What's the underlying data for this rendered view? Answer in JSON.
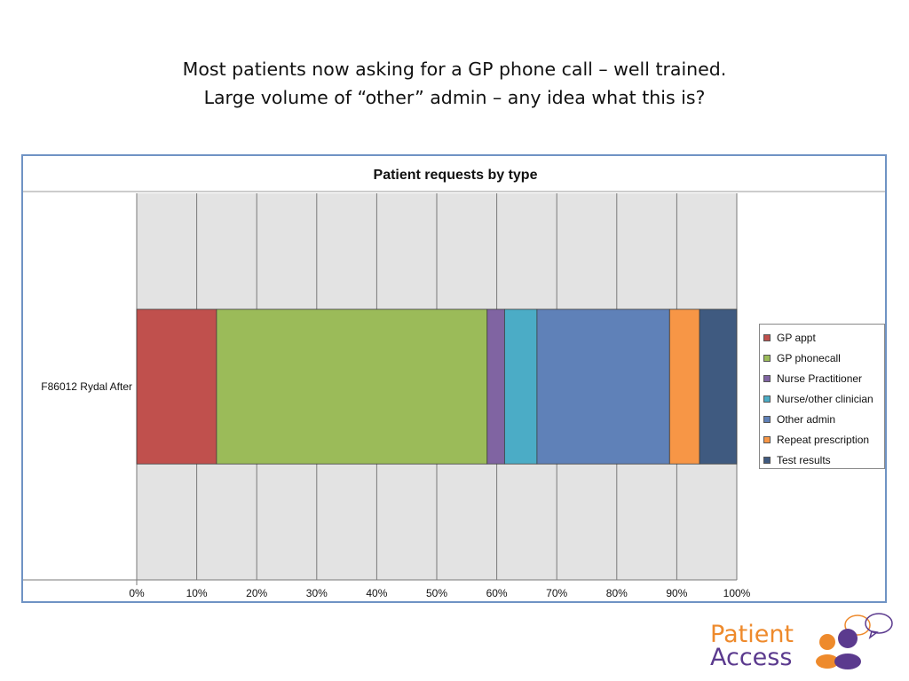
{
  "slide": {
    "title_line1": "Most patients now asking for a GP phone call – well trained.",
    "title_line2": "Large volume of “other” admin – any idea what this is?"
  },
  "logo": {
    "line1": "Patient",
    "line2": "Access",
    "colors": {
      "orange": "#ee8a2c",
      "purple": "#5b3a8e"
    }
  },
  "chart_data": {
    "type": "bar",
    "orientation": "horizontal",
    "stacked": "percent",
    "title": "Patient requests by type",
    "categories": [
      "F86012 Rydal   After"
    ],
    "series": [
      {
        "name": "GP appt",
        "values": [
          13.3
        ],
        "color": "#c0504d"
      },
      {
        "name": "GP phonecall",
        "values": [
          45.1
        ],
        "color": "#9bbb59"
      },
      {
        "name": "Nurse Practitioner",
        "values": [
          2.9
        ],
        "color": "#8064a2"
      },
      {
        "name": "Nurse/other clinician",
        "values": [
          5.4
        ],
        "color": "#4bacc6"
      },
      {
        "name": "Other admin",
        "values": [
          22.1
        ],
        "color": "#5f81b8"
      },
      {
        "name": "Repeat prescription",
        "values": [
          5.0
        ],
        "color": "#f79646"
      },
      {
        "name": "Test results",
        "values": [
          6.2
        ],
        "color": "#3f5a80"
      }
    ],
    "x_ticks": [
      "0%",
      "10%",
      "20%",
      "30%",
      "40%",
      "50%",
      "60%",
      "70%",
      "80%",
      "90%",
      "100%"
    ],
    "xlim": [
      0,
      100
    ],
    "grid": true,
    "legend_position": "right"
  }
}
